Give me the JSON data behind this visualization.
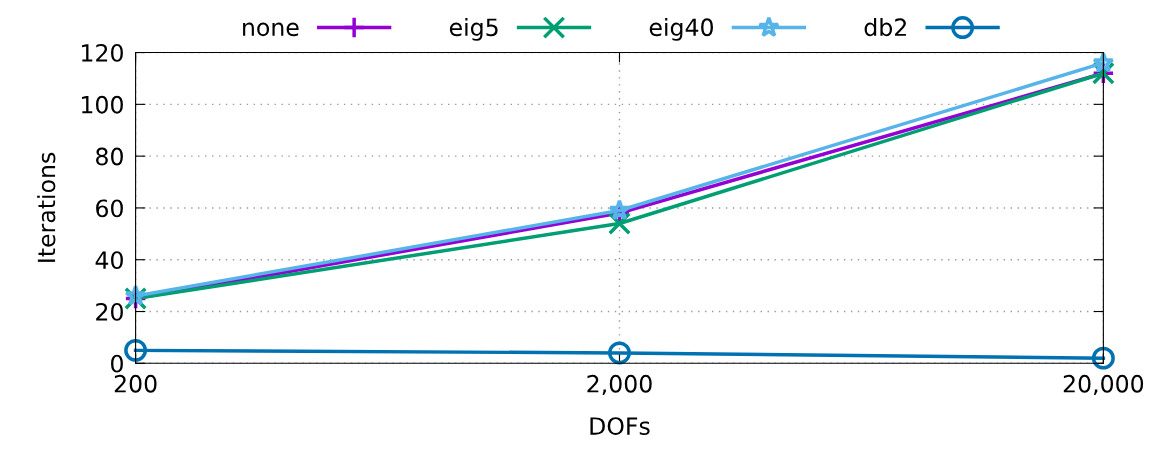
{
  "chart_data": {
    "type": "line",
    "xlabel": "DOFs",
    "ylabel": "Iterations",
    "log": "x",
    "x": [
      200,
      2000,
      20000
    ],
    "xlim": [
      200,
      20000
    ],
    "xticks": [
      {
        "value": 200,
        "label": "200"
      },
      {
        "value": 2000,
        "label": "2,000"
      },
      {
        "value": 20000,
        "label": "20,000"
      }
    ],
    "ylim": [
      0,
      120
    ],
    "yticks": [
      0,
      20,
      40,
      60,
      80,
      100,
      120
    ],
    "grid": true,
    "legend": "top",
    "series": [
      {
        "name": "none",
        "color": "#9400d3",
        "marker": "plus",
        "values": [
          25,
          58,
          112
        ]
      },
      {
        "name": "eig5",
        "color": "#009e73",
        "marker": "cross",
        "values": [
          25,
          54,
          112
        ]
      },
      {
        "name": "eig40",
        "color": "#56b4e9",
        "marker": "star",
        "values": [
          26,
          59,
          116
        ]
      },
      {
        "name": "db2",
        "color": "#0072b2",
        "marker": "circle",
        "values": [
          5,
          4,
          2
        ]
      }
    ]
  }
}
